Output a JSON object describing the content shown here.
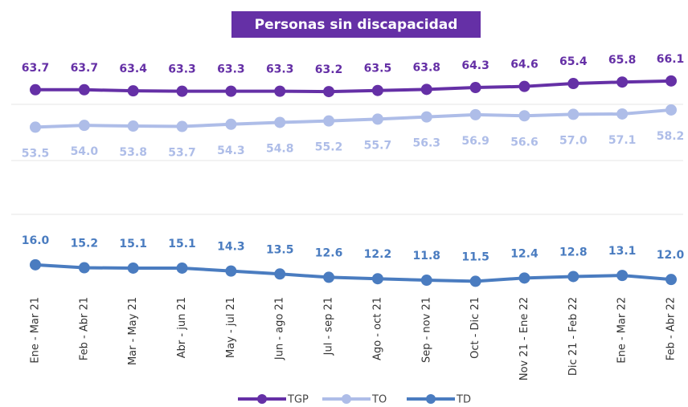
{
  "chart_data": {
    "type": "line",
    "title": "Personas sin discapacidad",
    "categories": [
      "Ene - Mar 21",
      "Feb - Abr 21",
      "Mar - May 21",
      "Abr - jun 21",
      "May - jul 21",
      "Jun - ago 21",
      "Jul - sep 21",
      "Ago - oct 21",
      "Sep - nov 21",
      "Oct - Dic 21",
      "Nov 21 - Ene 22",
      "Dic 21 - Feb 22",
      "Ene - Mar 22",
      "Feb - Abr 22"
    ],
    "series": [
      {
        "name": "TGP",
        "color": "#6530a6",
        "values": [
          63.7,
          63.7,
          63.4,
          63.3,
          63.3,
          63.3,
          63.2,
          63.5,
          63.8,
          64.3,
          64.6,
          65.4,
          65.8,
          66.1
        ],
        "value_labels": [
          "63.7",
          "63.7",
          "63.4",
          "63.3",
          "63.3",
          "63.3",
          "63.2",
          "63.5",
          "63.8",
          "64.3",
          "64.6",
          "65.4",
          "65.8",
          "66.1"
        ]
      },
      {
        "name": "TO",
        "color": "#aebde8",
        "values": [
          53.5,
          54.0,
          53.8,
          53.7,
          54.3,
          54.8,
          55.2,
          55.7,
          56.3,
          56.9,
          56.6,
          57.0,
          57.1,
          58.2
        ],
        "value_labels": [
          "53.5",
          "54.0",
          "53.8",
          "53.7",
          "54.3",
          "54.8",
          "55.2",
          "55.7",
          "56.3",
          "56.9",
          "56.6",
          "57.0",
          "57.1",
          "58.2"
        ]
      },
      {
        "name": "TD",
        "color": "#4a7cc0",
        "values": [
          16.0,
          15.2,
          15.1,
          15.1,
          14.3,
          13.5,
          12.6,
          12.2,
          11.8,
          11.5,
          12.4,
          12.8,
          13.1,
          12.0
        ],
        "value_labels": [
          "16.0",
          "15.2",
          "15.1",
          "15.1",
          "14.3",
          "13.5",
          "12.6",
          "12.2",
          "11.8",
          "11.5",
          "12.4",
          "12.8",
          "13.1",
          "12.0"
        ]
      }
    ],
    "ylim": [
      0,
      70
    ]
  }
}
